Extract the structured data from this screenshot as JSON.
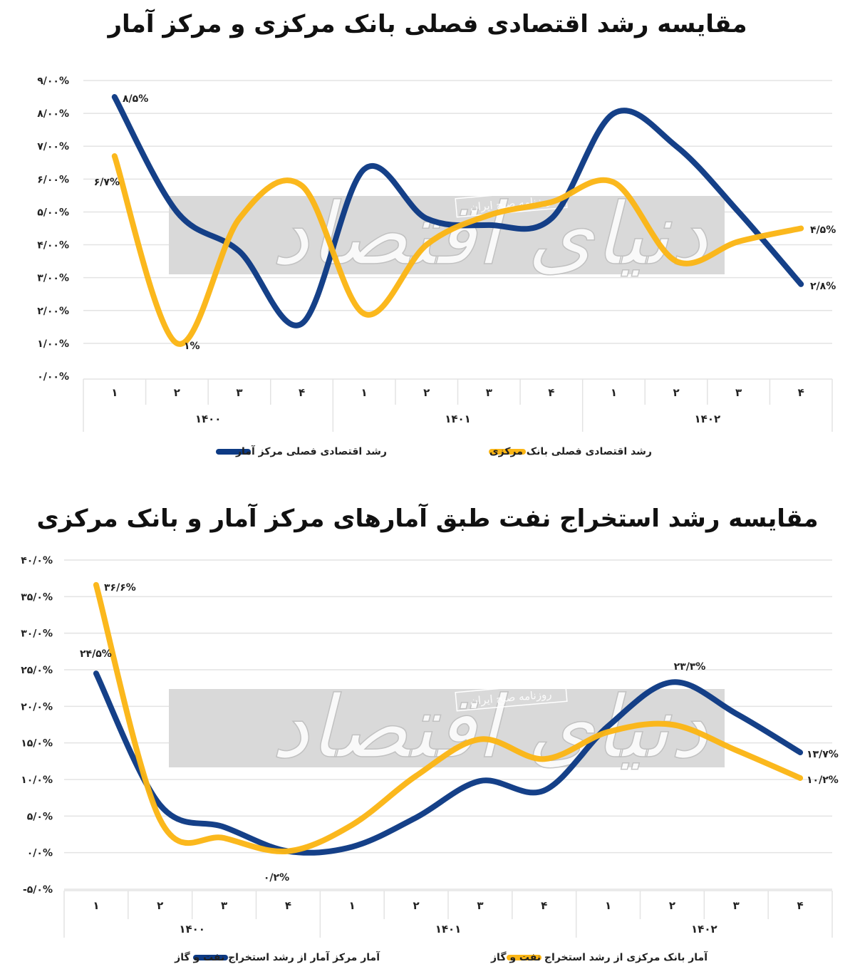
{
  "colors": {
    "blue": "#0d3a84",
    "yellow": "#fbb616",
    "grid": "#e3e3e3",
    "watermark_box": "#d9d9d9"
  },
  "watermark": {
    "brand": "دنیای اقتصاد",
    "tag": "روزنامه صبح ایران"
  },
  "chart_data": [
    {
      "type": "line",
      "title": "مقایسه رشد اقتصادی فصلی بانک مرکزی و مرکز آمار",
      "xlabel": "",
      "ylabel": "",
      "ylim": [
        0,
        9
      ],
      "grid": true,
      "legend_position": "bottom",
      "y_ticks": [
        "۹/۰۰%",
        "۸/۰۰%",
        "۷/۰۰%",
        "۶/۰۰%",
        "۵/۰۰%",
        "۴/۰۰%",
        "۳/۰۰%",
        "۲/۰۰%",
        "۱/۰۰%",
        "۰/۰۰%"
      ],
      "categories": [
        "۱",
        "۲",
        "۳",
        "۴",
        "۱",
        "۲",
        "۳",
        "۴",
        "۱",
        "۲",
        "۳",
        "۴"
      ],
      "groups": [
        {
          "label": "۱۴۰۰",
          "span": 4
        },
        {
          "label": "۱۴۰۱",
          "span": 4
        },
        {
          "label": "۱۴۰۲",
          "span": 4
        }
      ],
      "series": [
        {
          "name": "رشد اقتصادی فصلی مرکز آمار",
          "color": "#0d3a84",
          "values": [
            8.5,
            5.0,
            3.8,
            1.6,
            6.3,
            4.8,
            4.6,
            4.8,
            8.0,
            7.0,
            5.0,
            2.8
          ]
        },
        {
          "name": "رشد اقتصادی فصلی بانک مرکزی",
          "color": "#fbb616",
          "values": [
            6.7,
            1.0,
            4.8,
            5.8,
            1.9,
            4.0,
            4.9,
            5.3,
            5.9,
            3.5,
            4.1,
            4.5
          ]
        }
      ],
      "annotations": [
        {
          "text": "۸/۵%",
          "series": 0,
          "index": 0
        },
        {
          "text": "۶/۷%",
          "series": 1,
          "index": 0
        },
        {
          "text": "۱%",
          "series": 1,
          "index": 1
        },
        {
          "text": "۴/۵%",
          "series": 1,
          "index": 11
        },
        {
          "text": "۲/۸%",
          "series": 0,
          "index": 11
        }
      ]
    },
    {
      "type": "line",
      "title": "مقایسه رشد استخراج نفت طبق آمارهای مرکز آمار و بانک مرکزی",
      "xlabel": "",
      "ylabel": "",
      "ylim": [
        -5,
        40
      ],
      "grid": true,
      "legend_position": "bottom",
      "y_ticks": [
        "۴۰/۰%",
        "۳۵/۰%",
        "۳۰/۰%",
        "۲۵/۰%",
        "۲۰/۰%",
        "۱۵/۰%",
        "۱۰/۰%",
        "۵/۰%",
        "۰/۰%",
        "-۵/۰%"
      ],
      "categories": [
        "۱",
        "۲",
        "۳",
        "۴",
        "۱",
        "۲",
        "۳",
        "۴",
        "۱",
        "۲",
        "۳",
        "۴"
      ],
      "groups": [
        {
          "label": "۱۴۰۰",
          "span": 4
        },
        {
          "label": "۱۴۰۱",
          "span": 4
        },
        {
          "label": "۱۴۰۲",
          "span": 4
        }
      ],
      "series": [
        {
          "name": "آمار مرکز آمار از رشد استخراج نفت و گاز",
          "color": "#0d3a84",
          "values": [
            24.5,
            6.5,
            3.5,
            0.2,
            0.8,
            4.8,
            9.8,
            8.5,
            17.3,
            23.3,
            19.0,
            13.7
          ]
        },
        {
          "name": "آمار بانک مرکزی از رشد استخراج نفت و گاز",
          "color": "#fbb616",
          "values": [
            36.6,
            4.5,
            2.0,
            0.2,
            3.8,
            10.5,
            15.5,
            12.8,
            16.5,
            17.5,
            14.0,
            10.2
          ]
        }
      ],
      "annotations": [
        {
          "text": "۳۶/۶%",
          "series": 1,
          "index": 0
        },
        {
          "text": "۲۴/۵%",
          "series": 0,
          "index": 0
        },
        {
          "text": "۰/۲%",
          "series": 0,
          "index": 3
        },
        {
          "text": "۲۳/۳%",
          "series": 0,
          "index": 9
        },
        {
          "text": "۱۳/۷%",
          "series": 0,
          "index": 11
        },
        {
          "text": "۱۰/۲%",
          "series": 1,
          "index": 11
        }
      ]
    }
  ]
}
